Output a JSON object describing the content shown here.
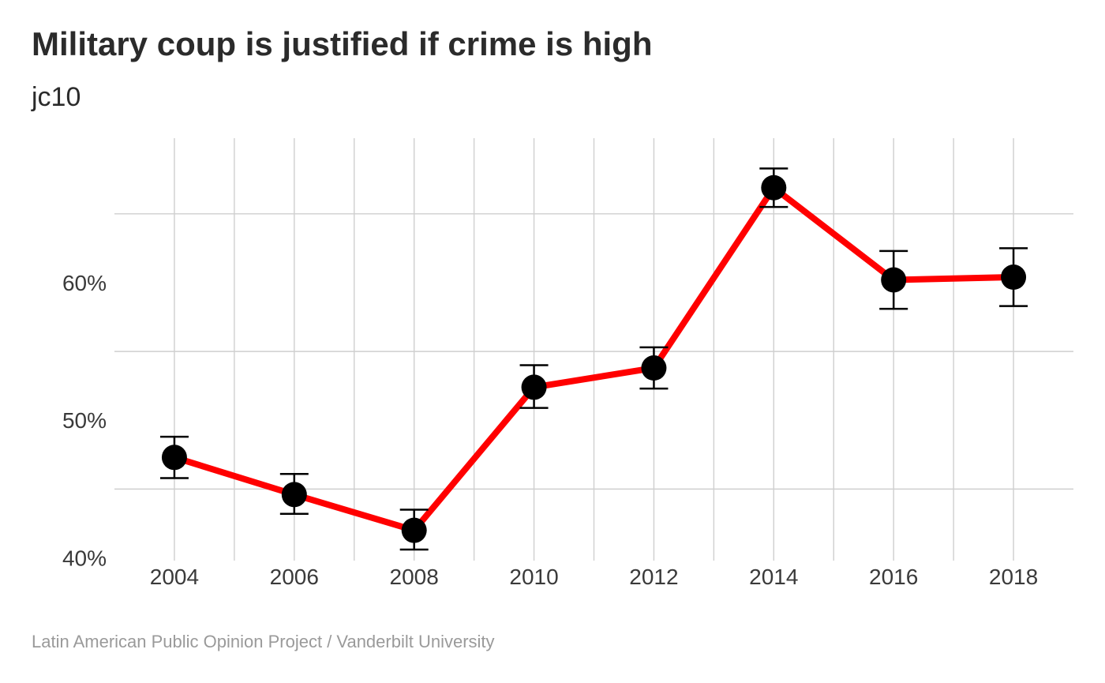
{
  "chart_data": {
    "type": "line",
    "title": "Military coup is justified if crime is high",
    "subtitle": "jc10",
    "caption": "Latin American Public Opinion Project / Vanderbilt University",
    "xlabel": "",
    "ylabel": "",
    "x": [
      2004,
      2006,
      2008,
      2010,
      2012,
      2014,
      2016,
      2018
    ],
    "x_tick_labels": [
      "2004",
      "2006",
      "2008",
      "2010",
      "2012",
      "2014",
      "2016",
      "2018"
    ],
    "y_tick_values": [
      40,
      50,
      60
    ],
    "y_tick_labels": [
      "40%",
      "50%",
      "60%"
    ],
    "ylim": [
      39.8,
      70.5
    ],
    "xlim": [
      2003.0,
      2019.0
    ],
    "series": [
      {
        "name": "jc10",
        "values": [
          47.3,
          44.6,
          42.0,
          52.4,
          53.8,
          66.9,
          60.2,
          60.4
        ],
        "ci_lower": [
          45.8,
          43.2,
          40.6,
          50.9,
          52.3,
          65.5,
          58.1,
          58.3
        ],
        "ci_upper": [
          48.8,
          46.1,
          43.5,
          54.0,
          55.3,
          68.3,
          62.3,
          62.5
        ],
        "line_color": "#ff0000",
        "point_color": "#000000"
      }
    ],
    "grid": true
  }
}
